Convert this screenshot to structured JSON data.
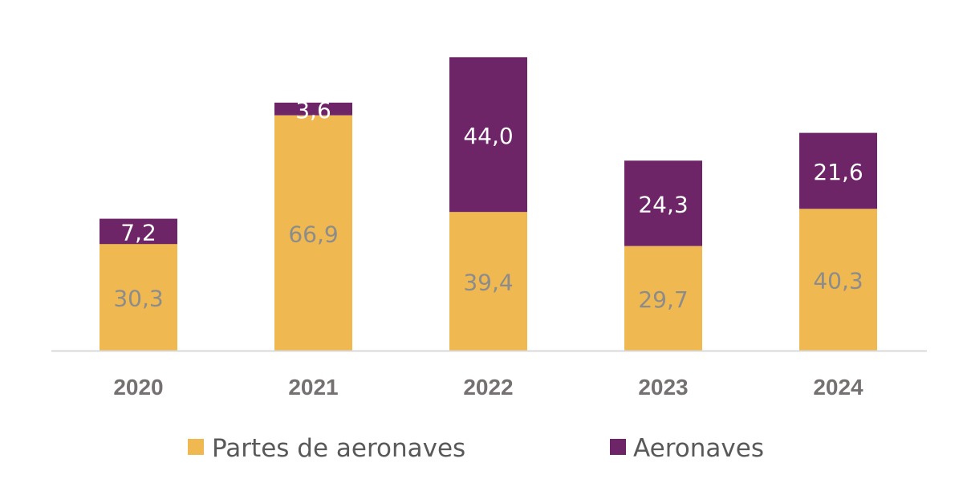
{
  "chart_data": {
    "type": "bar",
    "stacked": true,
    "categories": [
      "2020",
      "2021",
      "2022",
      "2023",
      "2024"
    ],
    "series": [
      {
        "name": "Partes de aeronaves",
        "values": [
          30.3,
          66.9,
          39.4,
          29.7,
          40.3
        ],
        "labels": [
          "30,3",
          "66,9",
          "39,4",
          "29,7",
          "40,3"
        ],
        "color": "#EFB850",
        "label_color": "#8C8C8C"
      },
      {
        "name": "Aeronaves",
        "values": [
          7.2,
          3.6,
          44.0,
          24.3,
          21.6
        ],
        "labels": [
          "7,2",
          "3,6",
          "44,0",
          "24,3",
          "21,6"
        ],
        "color": "#6E2568",
        "label_color": "#FFFFFF"
      }
    ],
    "ylim": [
      0,
      85.3
    ],
    "grid": false,
    "legend_position": "bottom",
    "axis_color": "#D9D9D9"
  }
}
